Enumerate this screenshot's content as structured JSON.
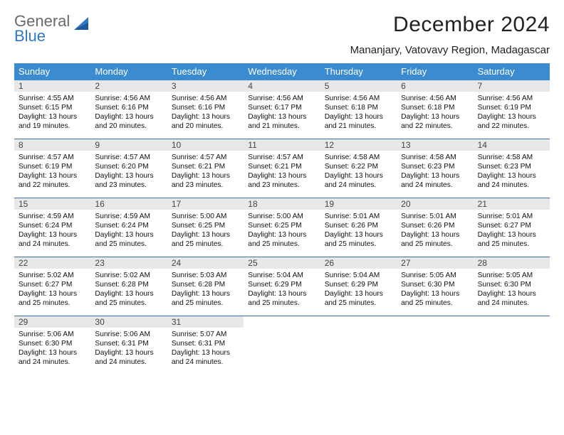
{
  "brand": {
    "word1": "General",
    "word2": "Blue"
  },
  "title": "December 2024",
  "subtitle": "Mananjary, Vatovavy Region, Madagascar",
  "colors": {
    "dow_bg": "#3b8bd1",
    "dow_text": "#ffffff",
    "week_border": "#3b6fa8",
    "daynum_bg": "#e8e8e8",
    "logo_gray": "#6a6a6a",
    "logo_blue": "#2f78c4"
  },
  "dow": [
    "Sunday",
    "Monday",
    "Tuesday",
    "Wednesday",
    "Thursday",
    "Friday",
    "Saturday"
  ],
  "days": [
    {
      "n": 1,
      "sr": "4:55 AM",
      "ss": "6:15 PM",
      "dl": "13 hours and 19 minutes."
    },
    {
      "n": 2,
      "sr": "4:56 AM",
      "ss": "6:16 PM",
      "dl": "13 hours and 20 minutes."
    },
    {
      "n": 3,
      "sr": "4:56 AM",
      "ss": "6:16 PM",
      "dl": "13 hours and 20 minutes."
    },
    {
      "n": 4,
      "sr": "4:56 AM",
      "ss": "6:17 PM",
      "dl": "13 hours and 21 minutes."
    },
    {
      "n": 5,
      "sr": "4:56 AM",
      "ss": "6:18 PM",
      "dl": "13 hours and 21 minutes."
    },
    {
      "n": 6,
      "sr": "4:56 AM",
      "ss": "6:18 PM",
      "dl": "13 hours and 22 minutes."
    },
    {
      "n": 7,
      "sr": "4:56 AM",
      "ss": "6:19 PM",
      "dl": "13 hours and 22 minutes."
    },
    {
      "n": 8,
      "sr": "4:57 AM",
      "ss": "6:19 PM",
      "dl": "13 hours and 22 minutes."
    },
    {
      "n": 9,
      "sr": "4:57 AM",
      "ss": "6:20 PM",
      "dl": "13 hours and 23 minutes."
    },
    {
      "n": 10,
      "sr": "4:57 AM",
      "ss": "6:21 PM",
      "dl": "13 hours and 23 minutes."
    },
    {
      "n": 11,
      "sr": "4:57 AM",
      "ss": "6:21 PM",
      "dl": "13 hours and 23 minutes."
    },
    {
      "n": 12,
      "sr": "4:58 AM",
      "ss": "6:22 PM",
      "dl": "13 hours and 24 minutes."
    },
    {
      "n": 13,
      "sr": "4:58 AM",
      "ss": "6:23 PM",
      "dl": "13 hours and 24 minutes."
    },
    {
      "n": 14,
      "sr": "4:58 AM",
      "ss": "6:23 PM",
      "dl": "13 hours and 24 minutes."
    },
    {
      "n": 15,
      "sr": "4:59 AM",
      "ss": "6:24 PM",
      "dl": "13 hours and 24 minutes."
    },
    {
      "n": 16,
      "sr": "4:59 AM",
      "ss": "6:24 PM",
      "dl": "13 hours and 25 minutes."
    },
    {
      "n": 17,
      "sr": "5:00 AM",
      "ss": "6:25 PM",
      "dl": "13 hours and 25 minutes."
    },
    {
      "n": 18,
      "sr": "5:00 AM",
      "ss": "6:25 PM",
      "dl": "13 hours and 25 minutes."
    },
    {
      "n": 19,
      "sr": "5:01 AM",
      "ss": "6:26 PM",
      "dl": "13 hours and 25 minutes."
    },
    {
      "n": 20,
      "sr": "5:01 AM",
      "ss": "6:26 PM",
      "dl": "13 hours and 25 minutes."
    },
    {
      "n": 21,
      "sr": "5:01 AM",
      "ss": "6:27 PM",
      "dl": "13 hours and 25 minutes."
    },
    {
      "n": 22,
      "sr": "5:02 AM",
      "ss": "6:27 PM",
      "dl": "13 hours and 25 minutes."
    },
    {
      "n": 23,
      "sr": "5:02 AM",
      "ss": "6:28 PM",
      "dl": "13 hours and 25 minutes."
    },
    {
      "n": 24,
      "sr": "5:03 AM",
      "ss": "6:28 PM",
      "dl": "13 hours and 25 minutes."
    },
    {
      "n": 25,
      "sr": "5:04 AM",
      "ss": "6:29 PM",
      "dl": "13 hours and 25 minutes."
    },
    {
      "n": 26,
      "sr": "5:04 AM",
      "ss": "6:29 PM",
      "dl": "13 hours and 25 minutes."
    },
    {
      "n": 27,
      "sr": "5:05 AM",
      "ss": "6:30 PM",
      "dl": "13 hours and 25 minutes."
    },
    {
      "n": 28,
      "sr": "5:05 AM",
      "ss": "6:30 PM",
      "dl": "13 hours and 24 minutes."
    },
    {
      "n": 29,
      "sr": "5:06 AM",
      "ss": "6:30 PM",
      "dl": "13 hours and 24 minutes."
    },
    {
      "n": 30,
      "sr": "5:06 AM",
      "ss": "6:31 PM",
      "dl": "13 hours and 24 minutes."
    },
    {
      "n": 31,
      "sr": "5:07 AM",
      "ss": "6:31 PM",
      "dl": "13 hours and 24 minutes."
    }
  ],
  "labels": {
    "sunrise": "Sunrise:",
    "sunset": "Sunset:",
    "daylight": "Daylight:"
  }
}
